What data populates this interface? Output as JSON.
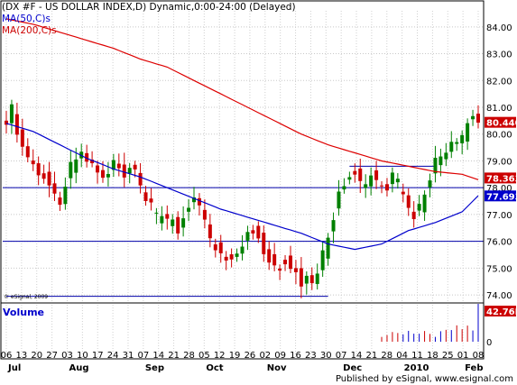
{
  "header": {
    "title": "(DX #F - US DOLLAR INDEX,D) Dynamic,0:00-24:00 (Delayed)",
    "ma50_label": "MA(50,C)s",
    "ma200_label": "MA(200,C)s"
  },
  "volume_label": "Volume",
  "copyright": "© eSignal, 2009",
  "publisher": "Published by eSignal, www.esignal.com",
  "colors": {
    "up_bar": "#008000",
    "down_bar": "#cc0000",
    "ma50": "#0000cc",
    "ma200": "#dd0000",
    "horizontal_lines": "#0000aa",
    "price_badge": "#cc0000",
    "ma50_badge": "#0000cc",
    "volume_up": "#0000cc",
    "volume_down": "#cc0000"
  },
  "chart_data": {
    "type": "candlestick",
    "symbol": "DX #F",
    "name": "US DOLLAR INDEX",
    "interval": "D",
    "y_ticks": [
      "74.00",
      "75.00",
      "76.00",
      "77.00",
      "78.00",
      "79.00",
      "80.00",
      "81.00",
      "82.00",
      "83.00",
      "84.00"
    ],
    "ylim": [
      73.7,
      84.6
    ],
    "x_day_labels": [
      "06",
      "13",
      "20",
      "27",
      "03",
      "10",
      "17",
      "24",
      "31",
      "07",
      "14",
      "21",
      "28",
      "05",
      "12",
      "19",
      "26",
      "02",
      "09",
      "16",
      "23",
      "30",
      "07",
      "14",
      "21",
      "28",
      "04",
      "11",
      "18",
      "25",
      "01",
      "08"
    ],
    "x_month_labels": [
      "Jul",
      "Aug",
      "Sep",
      "Oct",
      "Nov",
      "Dec",
      "2010",
      "Feb"
    ],
    "month_label_bar_index": [
      0,
      4,
      9,
      13,
      17,
      22,
      26,
      30
    ],
    "price_points": [
      [
        0,
        80.6
      ],
      [
        1,
        80.9
      ],
      [
        2,
        80.2
      ],
      [
        3,
        79.5
      ],
      [
        4,
        79.2
      ],
      [
        5,
        78.9
      ],
      [
        6,
        78.4
      ],
      [
        7,
        78.5
      ],
      [
        8,
        78.0
      ],
      [
        9,
        77.8
      ],
      [
        10,
        77.6
      ],
      [
        11,
        78.2
      ],
      [
        12,
        78.8
      ],
      [
        13,
        79.3
      ],
      [
        14,
        79.5
      ],
      [
        15,
        79.0
      ],
      [
        16,
        78.7
      ],
      [
        17,
        78.6
      ],
      [
        18,
        78.3
      ],
      [
        19,
        78.6
      ],
      [
        20,
        78.9
      ],
      [
        21,
        78.7
      ],
      [
        22,
        78.3
      ],
      [
        23,
        78.7
      ],
      [
        24,
        78.5
      ],
      [
        25,
        78.0
      ],
      [
        26,
        77.5
      ],
      [
        27,
        77.2
      ],
      [
        28,
        76.9
      ],
      [
        29,
        76.9
      ],
      [
        30,
        76.6
      ],
      [
        31,
        76.7
      ],
      [
        32,
        76.4
      ],
      [
        33,
        76.9
      ],
      [
        34,
        77.4
      ],
      [
        35,
        77.6
      ],
      [
        36,
        77.1
      ],
      [
        37,
        76.6
      ],
      [
        38,
        76.1
      ],
      [
        39,
        75.8
      ],
      [
        40,
        75.6
      ],
      [
        41,
        75.5
      ],
      [
        42,
        75.3
      ],
      [
        43,
        75.4
      ],
      [
        44,
        75.9
      ],
      [
        45,
        76.2
      ],
      [
        46,
        76.4
      ],
      [
        47,
        76.1
      ],
      [
        48,
        75.7
      ],
      [
        49,
        75.4
      ],
      [
        50,
        75.2
      ],
      [
        51,
        75.1
      ],
      [
        52,
        75.3
      ],
      [
        53,
        75.0
      ],
      [
        54,
        74.8
      ],
      [
        55,
        74.5
      ],
      [
        56,
        74.7
      ],
      [
        57,
        74.3
      ],
      [
        58,
        74.7
      ],
      [
        59,
        75.5
      ],
      [
        60,
        76.3
      ],
      [
        61,
        77.0
      ],
      [
        62,
        77.7
      ],
      [
        63,
        78.3
      ],
      [
        64,
        78.6
      ],
      [
        65,
        78.7
      ],
      [
        66,
        78.2
      ],
      [
        67,
        78.0
      ],
      [
        68,
        78.4
      ],
      [
        69,
        78.2
      ],
      [
        70,
        78.0
      ],
      [
        71,
        77.9
      ],
      [
        72,
        78.4
      ],
      [
        73,
        78.1
      ],
      [
        74,
        77.6
      ],
      [
        75,
        77.2
      ],
      [
        76,
        77.0
      ],
      [
        77,
        77.3
      ],
      [
        78,
        77.9
      ],
      [
        79,
        78.5
      ],
      [
        80,
        79.0
      ],
      [
        81,
        79.2
      ],
      [
        82,
        79.1
      ],
      [
        83,
        79.6
      ],
      [
        84,
        79.5
      ],
      [
        85,
        79.9
      ],
      [
        86,
        80.4
      ],
      [
        87,
        80.6
      ],
      [
        88,
        80.4
      ]
    ],
    "ma50_points": [
      [
        0,
        80.4
      ],
      [
        5,
        80.1
      ],
      [
        10,
        79.6
      ],
      [
        15,
        79.1
      ],
      [
        20,
        78.7
      ],
      [
        25,
        78.4
      ],
      [
        30,
        78.0
      ],
      [
        35,
        77.6
      ],
      [
        40,
        77.2
      ],
      [
        45,
        76.9
      ],
      [
        50,
        76.6
      ],
      [
        55,
        76.3
      ],
      [
        60,
        75.9
      ],
      [
        65,
        75.7
      ],
      [
        70,
        75.9
      ],
      [
        75,
        76.4
      ],
      [
        80,
        76.7
      ],
      [
        85,
        77.1
      ],
      [
        88,
        77.7
      ]
    ],
    "ma200_points": [
      [
        0,
        84.3
      ],
      [
        5,
        84.1
      ],
      [
        10,
        83.8
      ],
      [
        15,
        83.5
      ],
      [
        20,
        83.2
      ],
      [
        25,
        82.8
      ],
      [
        30,
        82.5
      ],
      [
        35,
        82.0
      ],
      [
        40,
        81.5
      ],
      [
        45,
        81.0
      ],
      [
        50,
        80.5
      ],
      [
        55,
        80.0
      ],
      [
        60,
        79.6
      ],
      [
        65,
        79.3
      ],
      [
        70,
        79.0
      ],
      [
        75,
        78.8
      ],
      [
        80,
        78.6
      ],
      [
        85,
        78.5
      ],
      [
        88,
        78.3
      ]
    ],
    "horizontal_lines": [
      {
        "price": 78.0,
        "extent": "full"
      },
      {
        "price": 76.0,
        "extent": "full"
      },
      {
        "price": 78.8,
        "extent": "partial",
        "from_bar": 64,
        "to_bar": 80
      },
      {
        "price": 73.95,
        "extent": "partial",
        "from_bar": 0,
        "to_bar": 60
      }
    ],
    "badges": [
      {
        "label": "80.440",
        "price": 80.44,
        "kind": "price"
      },
      {
        "label": "78.363",
        "price": 78.363,
        "kind": "ma200"
      },
      {
        "label": "77.693",
        "price": 77.693,
        "kind": "ma50"
      }
    ],
    "volume_badge": "42.76K",
    "volume_zero_label": "0",
    "volume_points": [
      [
        70,
        0.2
      ],
      [
        74,
        0.25
      ],
      [
        78,
        0.25
      ],
      [
        80,
        0.2
      ],
      [
        83,
        0.3
      ],
      [
        86,
        0.55
      ],
      [
        87,
        0.25
      ],
      [
        88,
        1.0
      ]
    ]
  }
}
